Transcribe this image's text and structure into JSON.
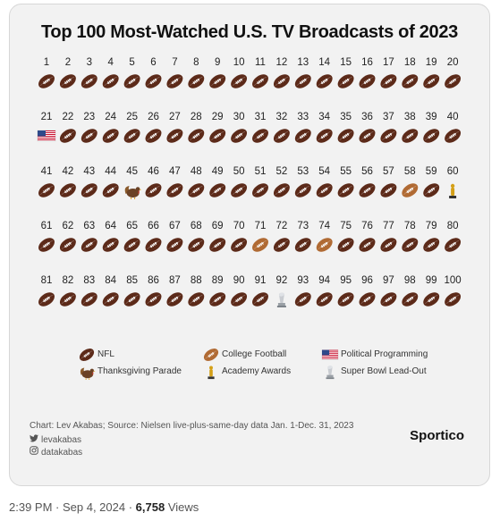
{
  "chart_data": {
    "type": "table",
    "title": "Top 100 Most-Watched U.S. TV Broadcasts of 2023",
    "ranks": [
      1,
      2,
      3,
      4,
      5,
      6,
      7,
      8,
      9,
      10,
      11,
      12,
      13,
      14,
      15,
      16,
      17,
      18,
      19,
      20,
      21,
      22,
      23,
      24,
      25,
      26,
      27,
      28,
      29,
      30,
      31,
      32,
      33,
      34,
      35,
      36,
      37,
      38,
      39,
      40,
      41,
      42,
      43,
      44,
      45,
      46,
      47,
      48,
      49,
      50,
      51,
      52,
      53,
      54,
      55,
      56,
      57,
      58,
      59,
      60,
      61,
      62,
      63,
      64,
      65,
      66,
      67,
      68,
      69,
      70,
      71,
      72,
      73,
      74,
      75,
      76,
      77,
      78,
      79,
      80,
      81,
      82,
      83,
      84,
      85,
      86,
      87,
      88,
      89,
      90,
      91,
      92,
      93,
      94,
      95,
      96,
      97,
      98,
      99,
      100
    ],
    "categories": [
      "nfl",
      "nfl",
      "nfl",
      "nfl",
      "nfl",
      "nfl",
      "nfl",
      "nfl",
      "nfl",
      "nfl",
      "nfl",
      "nfl",
      "nfl",
      "nfl",
      "nfl",
      "nfl",
      "nfl",
      "nfl",
      "nfl",
      "nfl",
      "political",
      "nfl",
      "nfl",
      "nfl",
      "nfl",
      "nfl",
      "nfl",
      "nfl",
      "nfl",
      "nfl",
      "nfl",
      "nfl",
      "nfl",
      "nfl",
      "nfl",
      "nfl",
      "nfl",
      "nfl",
      "nfl",
      "nfl",
      "nfl",
      "nfl",
      "nfl",
      "nfl",
      "parade",
      "nfl",
      "nfl",
      "nfl",
      "nfl",
      "nfl",
      "nfl",
      "nfl",
      "nfl",
      "nfl",
      "nfl",
      "nfl",
      "nfl",
      "college",
      "nfl",
      "academy",
      "nfl",
      "nfl",
      "nfl",
      "nfl",
      "nfl",
      "nfl",
      "nfl",
      "nfl",
      "nfl",
      "nfl",
      "college",
      "nfl",
      "nfl",
      "college",
      "nfl",
      "nfl",
      "nfl",
      "nfl",
      "nfl",
      "nfl",
      "nfl",
      "nfl",
      "nfl",
      "nfl",
      "nfl",
      "nfl",
      "nfl",
      "nfl",
      "nfl",
      "nfl",
      "nfl",
      "leadout",
      "nfl",
      "nfl",
      "nfl",
      "nfl",
      "nfl",
      "nfl",
      "nfl",
      "nfl"
    ],
    "legend": [
      {
        "key": "nfl",
        "label": "NFL"
      },
      {
        "key": "college",
        "label": "College Football"
      },
      {
        "key": "political",
        "label": "Political Programming"
      },
      {
        "key": "parade",
        "label": "Thanksgiving Parade"
      },
      {
        "key": "academy",
        "label": "Academy Awards"
      },
      {
        "key": "leadout",
        "label": "Super Bowl Lead-Out"
      }
    ]
  },
  "footer": {
    "source": "Chart: Lev Akabas; Source: Nielsen live-plus-same-day data Jan. 1-Dec. 31, 2023",
    "twitter": "levakabas",
    "instagram": "datakabas",
    "brand": "Sportico"
  },
  "tweet_meta": {
    "time": "2:39 PM",
    "date": "Sep 4, 2024",
    "views": "6,758",
    "views_label": "Views"
  },
  "colors": {
    "nfl": "#5c2a19",
    "college": "#b06a33",
    "trophy": "#c9ccd1"
  }
}
